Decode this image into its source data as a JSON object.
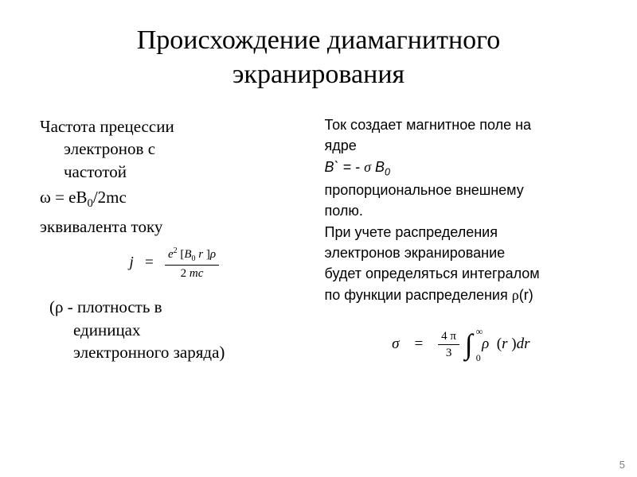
{
  "title_line1": "Происхождение диамагнитного",
  "title_line2": "экранирования",
  "left": {
    "precession_line1": "Частота прецессии",
    "precession_line2": "электронов с",
    "precession_line3": "частотой",
    "omega_prefix": "ω = eB",
    "omega_sub": "0",
    "omega_suffix": "/2mc",
    "equiv": "эквивалента току",
    "formula_j": {
      "lhs": "j",
      "equals": "=",
      "num_e": "e",
      "num_exp": "2",
      "num_bracket_open": "[",
      "num_B": "B",
      "num_B_sub": "0",
      "num_r": "r",
      "num_bracket_close": "]",
      "num_rho": "ρ",
      "den_2": "2",
      "den_mc": "mc"
    },
    "rho_note_line1": "(ρ - плотность в",
    "rho_note_line2": "единицах",
    "rho_note_line3": "электронного заряда)"
  },
  "right": {
    "line1": "Ток создает магнитное  поле на",
    "line2": "ядре",
    "formula_B_prefix": "B` = - ",
    "formula_B_sigma": "σ",
    "formula_B_B": " B",
    "formula_B_sub": "0",
    "line4": "пропорциональное  внешнему",
    "line5": "полю.",
    "line6": "При учете распределения",
    "line7": "электронов экранирование",
    "line8": "будет определяться интегралом",
    "line9a": "по функции распределения ",
    "line9_rho": "ρ",
    "line9b": "(r)",
    "formula_sigma": {
      "sigma": "σ",
      "equals": "=",
      "frac_num_4pi": "4 π",
      "frac_den_3": "3",
      "int_top": "∞",
      "int_sign": "∫",
      "int_bot": "0",
      "rho": "ρ",
      "open_paren": "(",
      "r": "r",
      "close_paren": ")",
      "dr": "dr"
    }
  },
  "page_num": "5",
  "colors": {
    "text": "#000000",
    "bg": "#ffffff",
    "page_num": "#808080"
  }
}
